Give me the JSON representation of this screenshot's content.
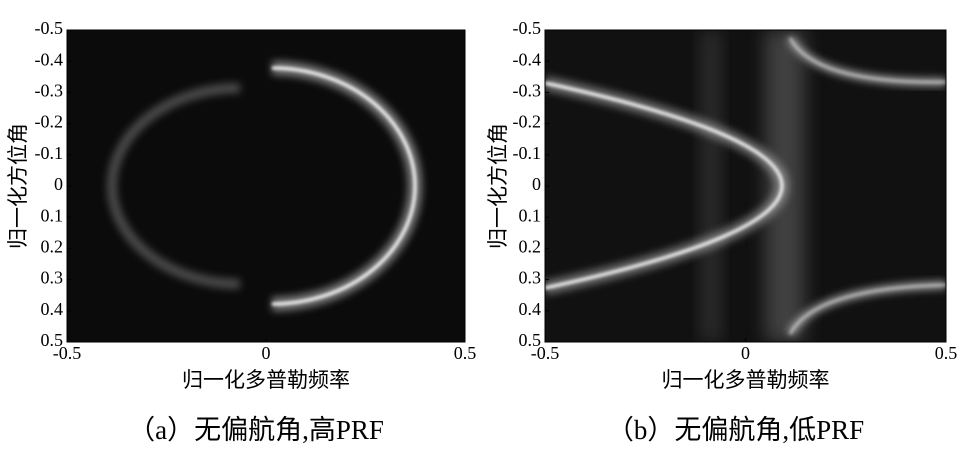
{
  "chart_data": [
    {
      "type": "image",
      "xlabel": "归一化多普勒频率",
      "ylabel": "归一化方位角",
      "caption": "（a）无偏航角,高PRF",
      "xlim": [
        -0.5,
        0.5
      ],
      "ylim": [
        -0.5,
        0.5
      ],
      "y_inverted": true,
      "xticks": [
        -0.5,
        0,
        0.5
      ],
      "yticks": [
        -0.5,
        -0.4,
        -0.3,
        -0.2,
        -0.1,
        0,
        0.1,
        0.2,
        0.3,
        0.4,
        0.5
      ]
    },
    {
      "type": "image",
      "xlabel": "归一化多普勒频率",
      "ylabel": "归一化方位角",
      "caption": "（b）无偏航角,低PRF",
      "xlim": [
        -0.5,
        0.5
      ],
      "ylim": [
        -0.5,
        0.5
      ],
      "y_inverted": true,
      "xticks": [
        -0.5,
        0,
        0.5
      ],
      "yticks": [
        -0.5,
        -0.4,
        -0.3,
        -0.2,
        -0.1,
        0,
        0.1,
        0.2,
        0.3,
        0.4,
        0.5
      ]
    }
  ]
}
